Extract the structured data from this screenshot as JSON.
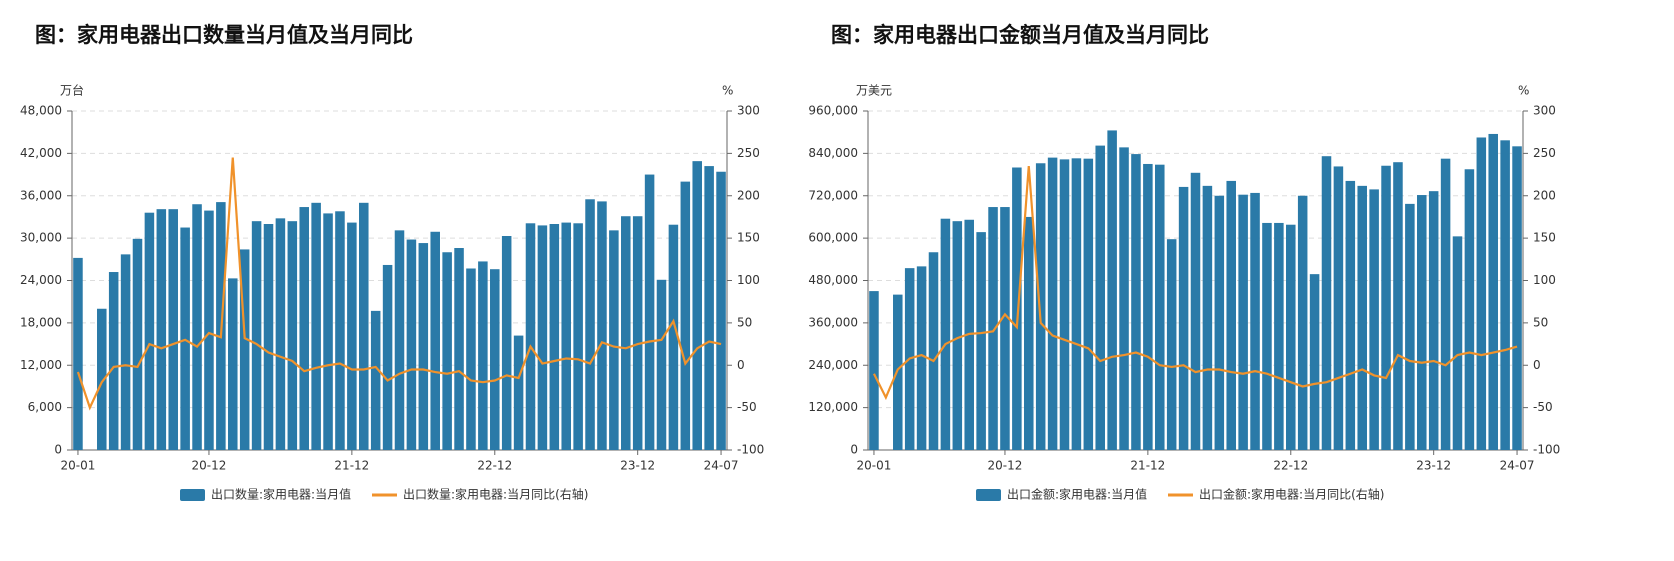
{
  "chart_data": [
    {
      "type": "bar-line",
      "title": "图：家用电器出口数量当月值及当月同比",
      "y_label": "万台",
      "y2_label": "%",
      "categories": [
        "20-01",
        null,
        null,
        null,
        null,
        null,
        null,
        null,
        null,
        null,
        null,
        "20-12",
        null,
        null,
        null,
        null,
        null,
        null,
        null,
        null,
        null,
        null,
        null,
        "21-12",
        null,
        null,
        null,
        null,
        null,
        null,
        null,
        null,
        null,
        null,
        null,
        "22-12",
        null,
        null,
        null,
        null,
        null,
        null,
        null,
        null,
        null,
        null,
        null,
        "23-12",
        null,
        null,
        null,
        null,
        null,
        null,
        "24-07"
      ],
      "series": [
        {
          "name": "出口数量:家用电器:当月值",
          "color": "#2a7aa8",
          "type": "bar",
          "values": [
            27200,
            null,
            20000,
            25200,
            27700,
            29900,
            33600,
            34100,
            34100,
            31500,
            34800,
            33900,
            35100,
            24300,
            28400,
            32400,
            32000,
            32800,
            32400,
            34400,
            35000,
            33500,
            33800,
            32200,
            35000,
            19700,
            26200,
            31100,
            29800,
            29300,
            30900,
            28000,
            28600,
            25700,
            26700,
            25600,
            30300,
            16200,
            32100,
            31800,
            32000,
            32200,
            32100,
            35500,
            35200,
            31100,
            33100,
            33100,
            39000,
            24100,
            31900,
            38000,
            40900,
            40200,
            39400
          ]
        },
        {
          "name": "出口数量:家用电器:当月同比(右轴)",
          "color": "#f0922b",
          "type": "line",
          "axis": "y2",
          "values": [
            -8,
            -50,
            -20,
            -2,
            0,
            -2,
            25,
            20,
            25,
            30,
            22,
            38,
            33,
            245,
            32,
            25,
            15,
            10,
            5,
            -7,
            -3,
            0,
            2,
            -5,
            -5,
            -2,
            -18,
            -10,
            -5,
            -5,
            -8,
            -10,
            -7,
            -18,
            -20,
            -18,
            -12,
            -15,
            22,
            2,
            5,
            8,
            7,
            2,
            27,
            22,
            20,
            25,
            28,
            30,
            52,
            2,
            20,
            28,
            25
          ]
        }
      ],
      "ylim": [
        0,
        48000
      ],
      "yticks": [
        0,
        {
          "value": 6000,
          "label": "6,000"
        },
        {
          "value": 12000,
          "label": "12,000"
        },
        {
          "value": 18000,
          "label": "18,000"
        },
        {
          "value": 24000,
          "label": "24,000"
        },
        {
          "value": 30000,
          "label": "30,000"
        },
        {
          "value": 36000,
          "label": "36,000"
        },
        {
          "value": 42000,
          "label": "42,000"
        },
        {
          "value": 48000,
          "label": "48,000"
        }
      ],
      "y2lim": [
        -100,
        300
      ],
      "y2ticks": [
        -100,
        -50,
        0,
        50,
        100,
        150,
        200,
        250,
        300
      ],
      "grid": true
    },
    {
      "type": "bar-line",
      "title": "图：家用电器出口金额当月值及当月同比",
      "y_label": "万美元",
      "y2_label": "%",
      "categories": [
        "20-01",
        null,
        null,
        null,
        null,
        null,
        null,
        null,
        null,
        null,
        null,
        "20-12",
        null,
        null,
        null,
        null,
        null,
        null,
        null,
        null,
        null,
        null,
        null,
        "21-12",
        null,
        null,
        null,
        null,
        null,
        null,
        null,
        null,
        null,
        null,
        null,
        "22-12",
        null,
        null,
        null,
        null,
        null,
        null,
        null,
        null,
        null,
        null,
        null,
        "23-12",
        null,
        null,
        null,
        null,
        null,
        null,
        "24-07"
      ],
      "series": [
        {
          "name": "出口金额:家用电器:当月值",
          "color": "#2a7aa8",
          "type": "bar",
          "values": [
            450000,
            null,
            440000,
            515000,
            520000,
            560000,
            655000,
            648000,
            652000,
            617000,
            688000,
            688000,
            800000,
            660000,
            812000,
            828000,
            823000,
            826000,
            825000,
            862000,
            905000,
            857000,
            838000,
            810000,
            808000,
            597000,
            745000,
            785000,
            748000,
            720000,
            762000,
            723000,
            728000,
            643000,
            643000,
            638000,
            720000,
            498000,
            832000,
            803000,
            762000,
            748000,
            738000,
            805000,
            815000,
            697000,
            722000,
            733000,
            825000,
            605000,
            795000,
            885000,
            895000,
            877000,
            860000
          ]
        },
        {
          "name": "出口金额:家用电器:当月同比(右轴)",
          "color": "#f0922b",
          "type": "line",
          "axis": "y2",
          "values": [
            -10,
            -38,
            -5,
            8,
            12,
            5,
            25,
            32,
            37,
            38,
            40,
            60,
            45,
            235,
            50,
            35,
            30,
            25,
            20,
            5,
            10,
            12,
            15,
            10,
            0,
            -2,
            0,
            -8,
            -5,
            -5,
            -8,
            -10,
            -7,
            -10,
            -15,
            -20,
            -25,
            -22,
            -20,
            -15,
            -10,
            -5,
            -12,
            -15,
            12,
            5,
            3,
            5,
            0,
            12,
            15,
            12,
            15,
            18,
            22
          ]
        }
      ],
      "ylim": [
        0,
        960000
      ],
      "yticks": [
        0,
        {
          "value": 120000,
          "label": "120,000"
        },
        {
          "value": 240000,
          "label": "240,000"
        },
        {
          "value": 360000,
          "label": "360,000"
        },
        {
          "value": 480000,
          "label": "480,000"
        },
        {
          "value": 600000,
          "label": "600,000"
        },
        {
          "value": 720000,
          "label": "720,000"
        },
        {
          "value": 840000,
          "label": "840,000"
        },
        {
          "value": 960000,
          "label": "960,000"
        }
      ],
      "y2lim": [
        -100,
        300
      ],
      "y2ticks": [
        -100,
        -50,
        0,
        50,
        100,
        150,
        200,
        250,
        300
      ],
      "grid": true
    }
  ]
}
